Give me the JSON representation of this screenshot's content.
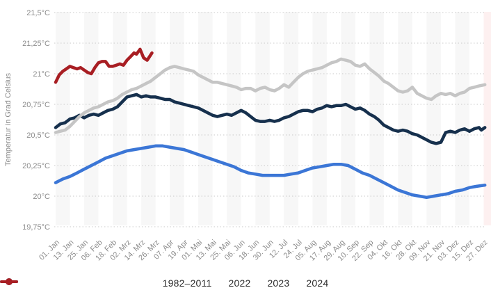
{
  "chart_data": {
    "type": "line",
    "title": "",
    "xlabel": "",
    "ylabel": "Temperatur in Grad Celsius",
    "ylim": [
      19.75,
      21.5
    ],
    "grid": "horizontal-dotted",
    "legend_position": "bottom",
    "x_tick_interval_days": 12,
    "x_tick_labels": [
      "01. Jan",
      "13. Jan",
      "25. Jan",
      "06. Feb",
      "18. Feb",
      "02. Mrz",
      "14. Mrz",
      "26. Mrz",
      "07. Apr",
      "19. Apr",
      "01. Mai",
      "13. Mai",
      "25. Mai",
      "06. Jun",
      "18. Jun",
      "30. Jun",
      "12. Jul",
      "24. Jul",
      "05. Aug",
      "17. Aug",
      "29. Aug",
      "10. Sep",
      "22. Sep",
      "04. Okt",
      "16. Okt",
      "28. Okt",
      "09. Nov",
      "21. Nov",
      "03. Dez",
      "15. Dez",
      "27. Dez"
    ],
    "y_ticks": [
      {
        "value": 21.5,
        "label": "21,5°C"
      },
      {
        "value": 21.25,
        "label": "21,25°C"
      },
      {
        "value": 21.0,
        "label": "21°C"
      },
      {
        "value": 20.75,
        "label": "20,75°C"
      },
      {
        "value": 20.5,
        "label": "20,5°C"
      },
      {
        "value": 20.25,
        "label": "20,25°C"
      },
      {
        "value": 20.0,
        "label": "20°C"
      },
      {
        "value": 19.75,
        "label": "19,75°C"
      }
    ],
    "style": {
      "band_color": "#f7f7f7",
      "right_highlight_color": "#fdf0f0",
      "grid_color": "#c9c9c9",
      "tick_label_color": "#8c8c8c",
      "legend_text_color": "#2b2b2b",
      "background": "#ffffff"
    },
    "series": [
      {
        "name": "1982–2011",
        "color": "#3b76d6",
        "points": [
          [
            0,
            20.11
          ],
          [
            6,
            20.14
          ],
          [
            12,
            20.16
          ],
          [
            18,
            20.19
          ],
          [
            24,
            20.22
          ],
          [
            30,
            20.25
          ],
          [
            36,
            20.28
          ],
          [
            42,
            20.31
          ],
          [
            48,
            20.33
          ],
          [
            54,
            20.35
          ],
          [
            60,
            20.37
          ],
          [
            66,
            20.38
          ],
          [
            72,
            20.39
          ],
          [
            78,
            20.4
          ],
          [
            84,
            20.41
          ],
          [
            90,
            20.41
          ],
          [
            96,
            20.4
          ],
          [
            102,
            20.39
          ],
          [
            108,
            20.38
          ],
          [
            114,
            20.36
          ],
          [
            120,
            20.34
          ],
          [
            126,
            20.32
          ],
          [
            132,
            20.3
          ],
          [
            138,
            20.28
          ],
          [
            144,
            20.26
          ],
          [
            150,
            20.24
          ],
          [
            156,
            20.21
          ],
          [
            162,
            20.19
          ],
          [
            168,
            20.18
          ],
          [
            174,
            20.17
          ],
          [
            180,
            20.17
          ],
          [
            186,
            20.17
          ],
          [
            192,
            20.17
          ],
          [
            198,
            20.18
          ],
          [
            204,
            20.19
          ],
          [
            210,
            20.21
          ],
          [
            216,
            20.23
          ],
          [
            222,
            20.24
          ],
          [
            228,
            20.25
          ],
          [
            234,
            20.26
          ],
          [
            240,
            20.26
          ],
          [
            246,
            20.25
          ],
          [
            252,
            20.22
          ],
          [
            258,
            20.19
          ],
          [
            264,
            20.17
          ],
          [
            270,
            20.14
          ],
          [
            276,
            20.11
          ],
          [
            282,
            20.08
          ],
          [
            288,
            20.05
          ],
          [
            294,
            20.03
          ],
          [
            300,
            20.01
          ],
          [
            306,
            20.0
          ],
          [
            312,
            19.99
          ],
          [
            318,
            20.0
          ],
          [
            324,
            20.01
          ],
          [
            330,
            20.02
          ],
          [
            336,
            20.04
          ],
          [
            342,
            20.05
          ],
          [
            348,
            20.07
          ],
          [
            354,
            20.08
          ],
          [
            361,
            20.09
          ]
        ]
      },
      {
        "name": "2022",
        "color": "#16304d",
        "points": [
          [
            0,
            20.56
          ],
          [
            4,
            20.59
          ],
          [
            8,
            20.6
          ],
          [
            12,
            20.63
          ],
          [
            16,
            20.64
          ],
          [
            20,
            20.66
          ],
          [
            24,
            20.64
          ],
          [
            28,
            20.66
          ],
          [
            32,
            20.67
          ],
          [
            36,
            20.66
          ],
          [
            40,
            20.68
          ],
          [
            44,
            20.7
          ],
          [
            48,
            20.71
          ],
          [
            52,
            20.73
          ],
          [
            56,
            20.77
          ],
          [
            60,
            20.81
          ],
          [
            64,
            20.82
          ],
          [
            68,
            20.83
          ],
          [
            72,
            20.81
          ],
          [
            76,
            20.82
          ],
          [
            80,
            20.81
          ],
          [
            84,
            20.81
          ],
          [
            88,
            20.8
          ],
          [
            92,
            20.79
          ],
          [
            96,
            20.79
          ],
          [
            100,
            20.77
          ],
          [
            104,
            20.76
          ],
          [
            108,
            20.75
          ],
          [
            112,
            20.74
          ],
          [
            116,
            20.73
          ],
          [
            120,
            20.72
          ],
          [
            124,
            20.7
          ],
          [
            128,
            20.68
          ],
          [
            132,
            20.66
          ],
          [
            136,
            20.65
          ],
          [
            140,
            20.66
          ],
          [
            144,
            20.67
          ],
          [
            148,
            20.66
          ],
          [
            152,
            20.68
          ],
          [
            156,
            20.7
          ],
          [
            160,
            20.68
          ],
          [
            164,
            20.65
          ],
          [
            168,
            20.62
          ],
          [
            172,
            20.61
          ],
          [
            176,
            20.61
          ],
          [
            180,
            20.62
          ],
          [
            184,
            20.61
          ],
          [
            188,
            20.62
          ],
          [
            192,
            20.64
          ],
          [
            196,
            20.65
          ],
          [
            200,
            20.67
          ],
          [
            204,
            20.69
          ],
          [
            208,
            20.7
          ],
          [
            212,
            20.7
          ],
          [
            216,
            20.69
          ],
          [
            220,
            20.71
          ],
          [
            224,
            20.72
          ],
          [
            228,
            20.74
          ],
          [
            232,
            20.73
          ],
          [
            236,
            20.74
          ],
          [
            240,
            20.74
          ],
          [
            244,
            20.75
          ],
          [
            248,
            20.73
          ],
          [
            252,
            20.71
          ],
          [
            256,
            20.72
          ],
          [
            260,
            20.7
          ],
          [
            264,
            20.67
          ],
          [
            268,
            20.65
          ],
          [
            272,
            20.62
          ],
          [
            276,
            20.58
          ],
          [
            280,
            20.56
          ],
          [
            284,
            20.54
          ],
          [
            288,
            20.53
          ],
          [
            292,
            20.54
          ],
          [
            296,
            20.53
          ],
          [
            300,
            20.51
          ],
          [
            304,
            20.5
          ],
          [
            308,
            20.48
          ],
          [
            312,
            20.46
          ],
          [
            316,
            20.44
          ],
          [
            320,
            20.43
          ],
          [
            324,
            20.44
          ],
          [
            328,
            20.52
          ],
          [
            332,
            20.53
          ],
          [
            336,
            20.52
          ],
          [
            340,
            20.54
          ],
          [
            344,
            20.55
          ],
          [
            348,
            20.53
          ],
          [
            352,
            20.55
          ],
          [
            356,
            20.56
          ],
          [
            358,
            20.54
          ],
          [
            361,
            20.56
          ]
        ]
      },
      {
        "name": "2023",
        "color": "#c5c5c5",
        "points": [
          [
            0,
            20.52
          ],
          [
            4,
            20.53
          ],
          [
            8,
            20.54
          ],
          [
            12,
            20.57
          ],
          [
            16,
            20.61
          ],
          [
            20,
            20.65
          ],
          [
            24,
            20.68
          ],
          [
            28,
            20.7
          ],
          [
            32,
            20.72
          ],
          [
            36,
            20.73
          ],
          [
            40,
            20.75
          ],
          [
            44,
            20.77
          ],
          [
            48,
            20.78
          ],
          [
            52,
            20.8
          ],
          [
            56,
            20.83
          ],
          [
            60,
            20.85
          ],
          [
            64,
            20.87
          ],
          [
            68,
            20.88
          ],
          [
            72,
            20.9
          ],
          [
            76,
            20.92
          ],
          [
            80,
            20.94
          ],
          [
            84,
            20.97
          ],
          [
            88,
            21.0
          ],
          [
            92,
            21.03
          ],
          [
            96,
            21.05
          ],
          [
            100,
            21.06
          ],
          [
            104,
            21.05
          ],
          [
            108,
            21.04
          ],
          [
            112,
            21.03
          ],
          [
            116,
            21.02
          ],
          [
            120,
            20.99
          ],
          [
            124,
            20.97
          ],
          [
            128,
            20.95
          ],
          [
            132,
            20.93
          ],
          [
            136,
            20.93
          ],
          [
            140,
            20.92
          ],
          [
            144,
            20.91
          ],
          [
            148,
            20.9
          ],
          [
            152,
            20.89
          ],
          [
            156,
            20.87
          ],
          [
            160,
            20.88
          ],
          [
            164,
            20.88
          ],
          [
            168,
            20.86
          ],
          [
            172,
            20.88
          ],
          [
            176,
            20.89
          ],
          [
            180,
            20.87
          ],
          [
            184,
            20.86
          ],
          [
            188,
            20.88
          ],
          [
            192,
            20.91
          ],
          [
            196,
            20.89
          ],
          [
            200,
            20.93
          ],
          [
            204,
            20.97
          ],
          [
            208,
            21.0
          ],
          [
            212,
            21.02
          ],
          [
            216,
            21.03
          ],
          [
            220,
            21.04
          ],
          [
            224,
            21.05
          ],
          [
            228,
            21.07
          ],
          [
            232,
            21.09
          ],
          [
            236,
            21.1
          ],
          [
            240,
            21.12
          ],
          [
            244,
            21.11
          ],
          [
            248,
            21.1
          ],
          [
            252,
            21.07
          ],
          [
            256,
            21.06
          ],
          [
            260,
            21.08
          ],
          [
            264,
            21.04
          ],
          [
            268,
            21.01
          ],
          [
            272,
            20.98
          ],
          [
            276,
            20.94
          ],
          [
            280,
            20.92
          ],
          [
            284,
            20.89
          ],
          [
            288,
            20.86
          ],
          [
            292,
            20.85
          ],
          [
            296,
            20.86
          ],
          [
            300,
            20.89
          ],
          [
            304,
            20.84
          ],
          [
            308,
            20.82
          ],
          [
            312,
            20.8
          ],
          [
            316,
            20.79
          ],
          [
            320,
            20.82
          ],
          [
            324,
            20.84
          ],
          [
            328,
            20.83
          ],
          [
            332,
            20.84
          ],
          [
            336,
            20.82
          ],
          [
            340,
            20.84
          ],
          [
            344,
            20.85
          ],
          [
            348,
            20.88
          ],
          [
            352,
            20.89
          ],
          [
            356,
            20.9
          ],
          [
            361,
            20.91
          ]
        ]
      },
      {
        "name": "2024",
        "color": "#a81e23",
        "points": [
          [
            0,
            20.93
          ],
          [
            3,
            20.99
          ],
          [
            6,
            21.02
          ],
          [
            9,
            21.04
          ],
          [
            12,
            21.06
          ],
          [
            15,
            21.05
          ],
          [
            18,
            21.04
          ],
          [
            21,
            21.05
          ],
          [
            24,
            21.03
          ],
          [
            27,
            21.01
          ],
          [
            30,
            21.0
          ],
          [
            33,
            21.05
          ],
          [
            36,
            21.09
          ],
          [
            39,
            21.1
          ],
          [
            42,
            21.1
          ],
          [
            45,
            21.06
          ],
          [
            48,
            21.06
          ],
          [
            51,
            21.07
          ],
          [
            54,
            21.08
          ],
          [
            57,
            21.07
          ],
          [
            60,
            21.11
          ],
          [
            63,
            21.14
          ],
          [
            66,
            21.17
          ],
          [
            68,
            21.16
          ],
          [
            71,
            21.2
          ],
          [
            74,
            21.13
          ],
          [
            77,
            21.11
          ],
          [
            81,
            21.17
          ]
        ]
      }
    ]
  }
}
